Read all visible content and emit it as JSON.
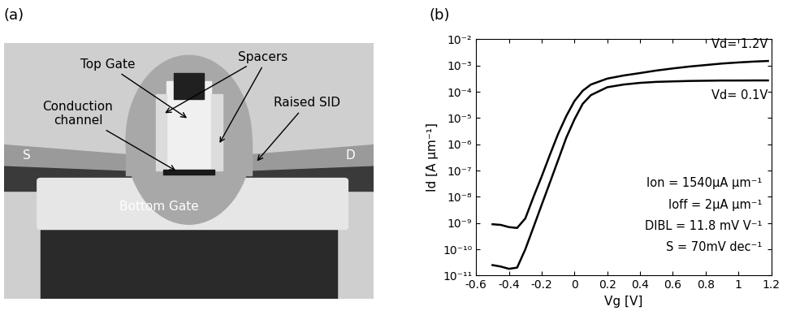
{
  "panel_a": {
    "label": "(a)",
    "labels": {
      "top_gate": "Top Gate",
      "spacers": "Spacers",
      "channel": "Conduction\nchannel",
      "raised_sd": "Raised SID",
      "source": "S",
      "drain": "D",
      "bottom_gate": "Bottom Gate"
    }
  },
  "chart_data": {
    "type": "line",
    "title": "(b)",
    "x_label": "Vg [V]",
    "y_label": "Id [A µm⁻¹]",
    "log": "y",
    "x": [
      -0.5,
      -0.45,
      -0.4,
      -0.35,
      -0.3,
      -0.25,
      -0.2,
      -0.15,
      -0.1,
      -0.05,
      0,
      0.05,
      0.1,
      0.2,
      0.3,
      0.4,
      0.5,
      0.6,
      0.7,
      0.8,
      0.9,
      1.0,
      1.1,
      1.18
    ],
    "series": [
      {
        "name": "Vd= 1.2V",
        "color": "#000000",
        "values": [
          9e-10,
          8.5e-10,
          7e-10,
          6.5e-10,
          1.5e-09,
          1e-08,
          6e-08,
          4e-07,
          2.5e-06,
          1.2e-05,
          4.5e-05,
          0.00011,
          0.00019,
          0.00032,
          0.00042,
          0.00052,
          0.00065,
          0.00078,
          0.00092,
          0.00105,
          0.0012,
          0.00132,
          0.00143,
          0.0015
        ]
      },
      {
        "name": "Vd= 0.1V",
        "color": "#000000",
        "values": [
          2.5e-11,
          2.2e-11,
          1.8e-11,
          2e-11,
          1e-10,
          7e-10,
          5e-09,
          3.5e-08,
          2.5e-07,
          1.8e-06,
          9e-06,
          3.5e-05,
          7.5e-05,
          0.00015,
          0.00019,
          0.00022,
          0.00024,
          0.00025,
          0.00026,
          0.000265,
          0.00027,
          0.00027,
          0.000272,
          0.000272
        ]
      }
    ],
    "xlim": [
      -0.6,
      1.2
    ],
    "xticks": [
      -0.6,
      -0.4,
      -0.2,
      0,
      0.2,
      0.4,
      0.6,
      0.8,
      1,
      1.2
    ],
    "ylim": [
      1e-11,
      0.01
    ],
    "yticks": [
      {
        "value": 1e-11,
        "label": "10⁻¹¹"
      },
      {
        "value": 1e-10,
        "label": "10⁻¹⁰"
      },
      {
        "value": 1e-09,
        "label": "10⁻⁹"
      },
      {
        "value": 1e-08,
        "label": "10⁻⁸"
      },
      {
        "value": 1e-07,
        "label": "10⁻⁷"
      },
      {
        "value": 1e-06,
        "label": "10⁻⁶"
      },
      {
        "value": 1e-05,
        "label": "10⁻⁵"
      },
      {
        "value": 0.0001,
        "label": "10⁻⁴"
      },
      {
        "value": 0.001,
        "label": "10⁻³"
      },
      {
        "value": 0.01,
        "label": "10⁻²"
      }
    ],
    "annotations": [
      "Ion = 1540µA µm⁻¹",
      "Ioff = 2µA µm⁻¹",
      "DIBL = 11.8 mV V⁻¹",
      "S = 70mV dec⁻¹"
    ],
    "grid": false
  }
}
